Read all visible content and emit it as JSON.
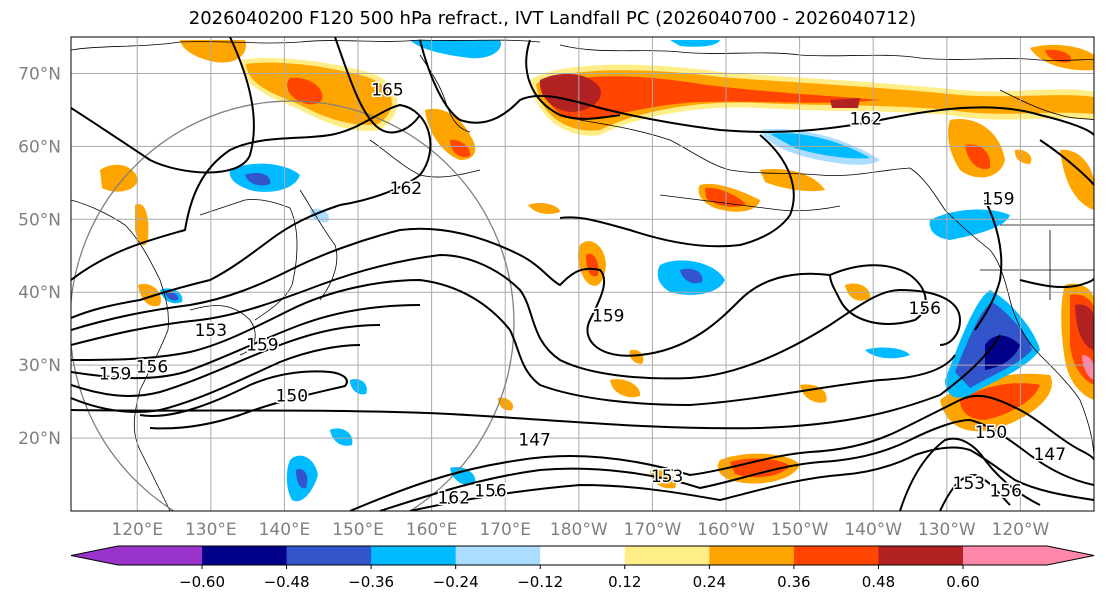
{
  "title": "2026040200 F120 500 hPa refract., IVT Landfall PC (2026040700 - 2026040712)",
  "map": {
    "lat_labels": [
      "70°N",
      "60°N",
      "50°N",
      "40°N",
      "30°N",
      "20°N"
    ],
    "lat_values": [
      70,
      60,
      50,
      40,
      30,
      20
    ],
    "lon_labels": [
      "120°E",
      "130°E",
      "140°E",
      "150°E",
      "160°E",
      "170°E",
      "180°W",
      "170°W",
      "160°W",
      "150°W",
      "140°W",
      "130°W",
      "120°W"
    ],
    "lon_values": [
      120,
      130,
      140,
      150,
      160,
      170,
      180,
      190,
      200,
      210,
      220,
      230,
      240
    ],
    "lat_range": [
      10,
      75
    ],
    "lon_range": [
      111,
      250
    ],
    "grid": true,
    "contour_labels": [
      {
        "text": "165",
        "lon": 154,
        "lat": 67
      },
      {
        "text": "162",
        "lon": 156.5,
        "lat": 53.5
      },
      {
        "text": "162",
        "lon": 219,
        "lat": 63
      },
      {
        "text": "159",
        "lon": 237,
        "lat": 52
      },
      {
        "text": "159",
        "lon": 184,
        "lat": 36
      },
      {
        "text": "159",
        "lon": 137,
        "lat": 32
      },
      {
        "text": "159",
        "lon": 117,
        "lat": 28
      },
      {
        "text": "156",
        "lon": 122,
        "lat": 29
      },
      {
        "text": "156",
        "lon": 227,
        "lat": 37
      },
      {
        "text": "156",
        "lon": 168,
        "lat": 12
      },
      {
        "text": "156",
        "lon": 238,
        "lat": 12
      },
      {
        "text": "153",
        "lon": 130,
        "lat": 34
      },
      {
        "text": "153",
        "lon": 192,
        "lat": 14
      },
      {
        "text": "153",
        "lon": 233,
        "lat": 13
      },
      {
        "text": "150",
        "lon": 141,
        "lat": 25
      },
      {
        "text": "150",
        "lon": 236,
        "lat": 20
      },
      {
        "text": "147",
        "lon": 174,
        "lat": 19
      },
      {
        "text": "147",
        "lon": 244,
        "lat": 17
      },
      {
        "text": "162",
        "lon": 163,
        "lat": 11
      }
    ]
  },
  "colorbar": {
    "colors": [
      "#9933cc",
      "#000088",
      "#3355cc",
      "#00bbff",
      "#aaddff",
      "#ffffff",
      "#ffee88",
      "#ffa500",
      "#ff4500",
      "#b22222",
      "#ff88aa"
    ],
    "tick_labels": [
      "−0.60",
      "−0.48",
      "−0.36",
      "−0.24",
      "−0.12",
      "0.12",
      "0.24",
      "0.36",
      "0.48",
      "0.60"
    ],
    "levels": [
      -0.6,
      -0.48,
      -0.36,
      -0.24,
      -0.12,
      0.12,
      0.24,
      0.36,
      0.48,
      0.6
    ]
  }
}
